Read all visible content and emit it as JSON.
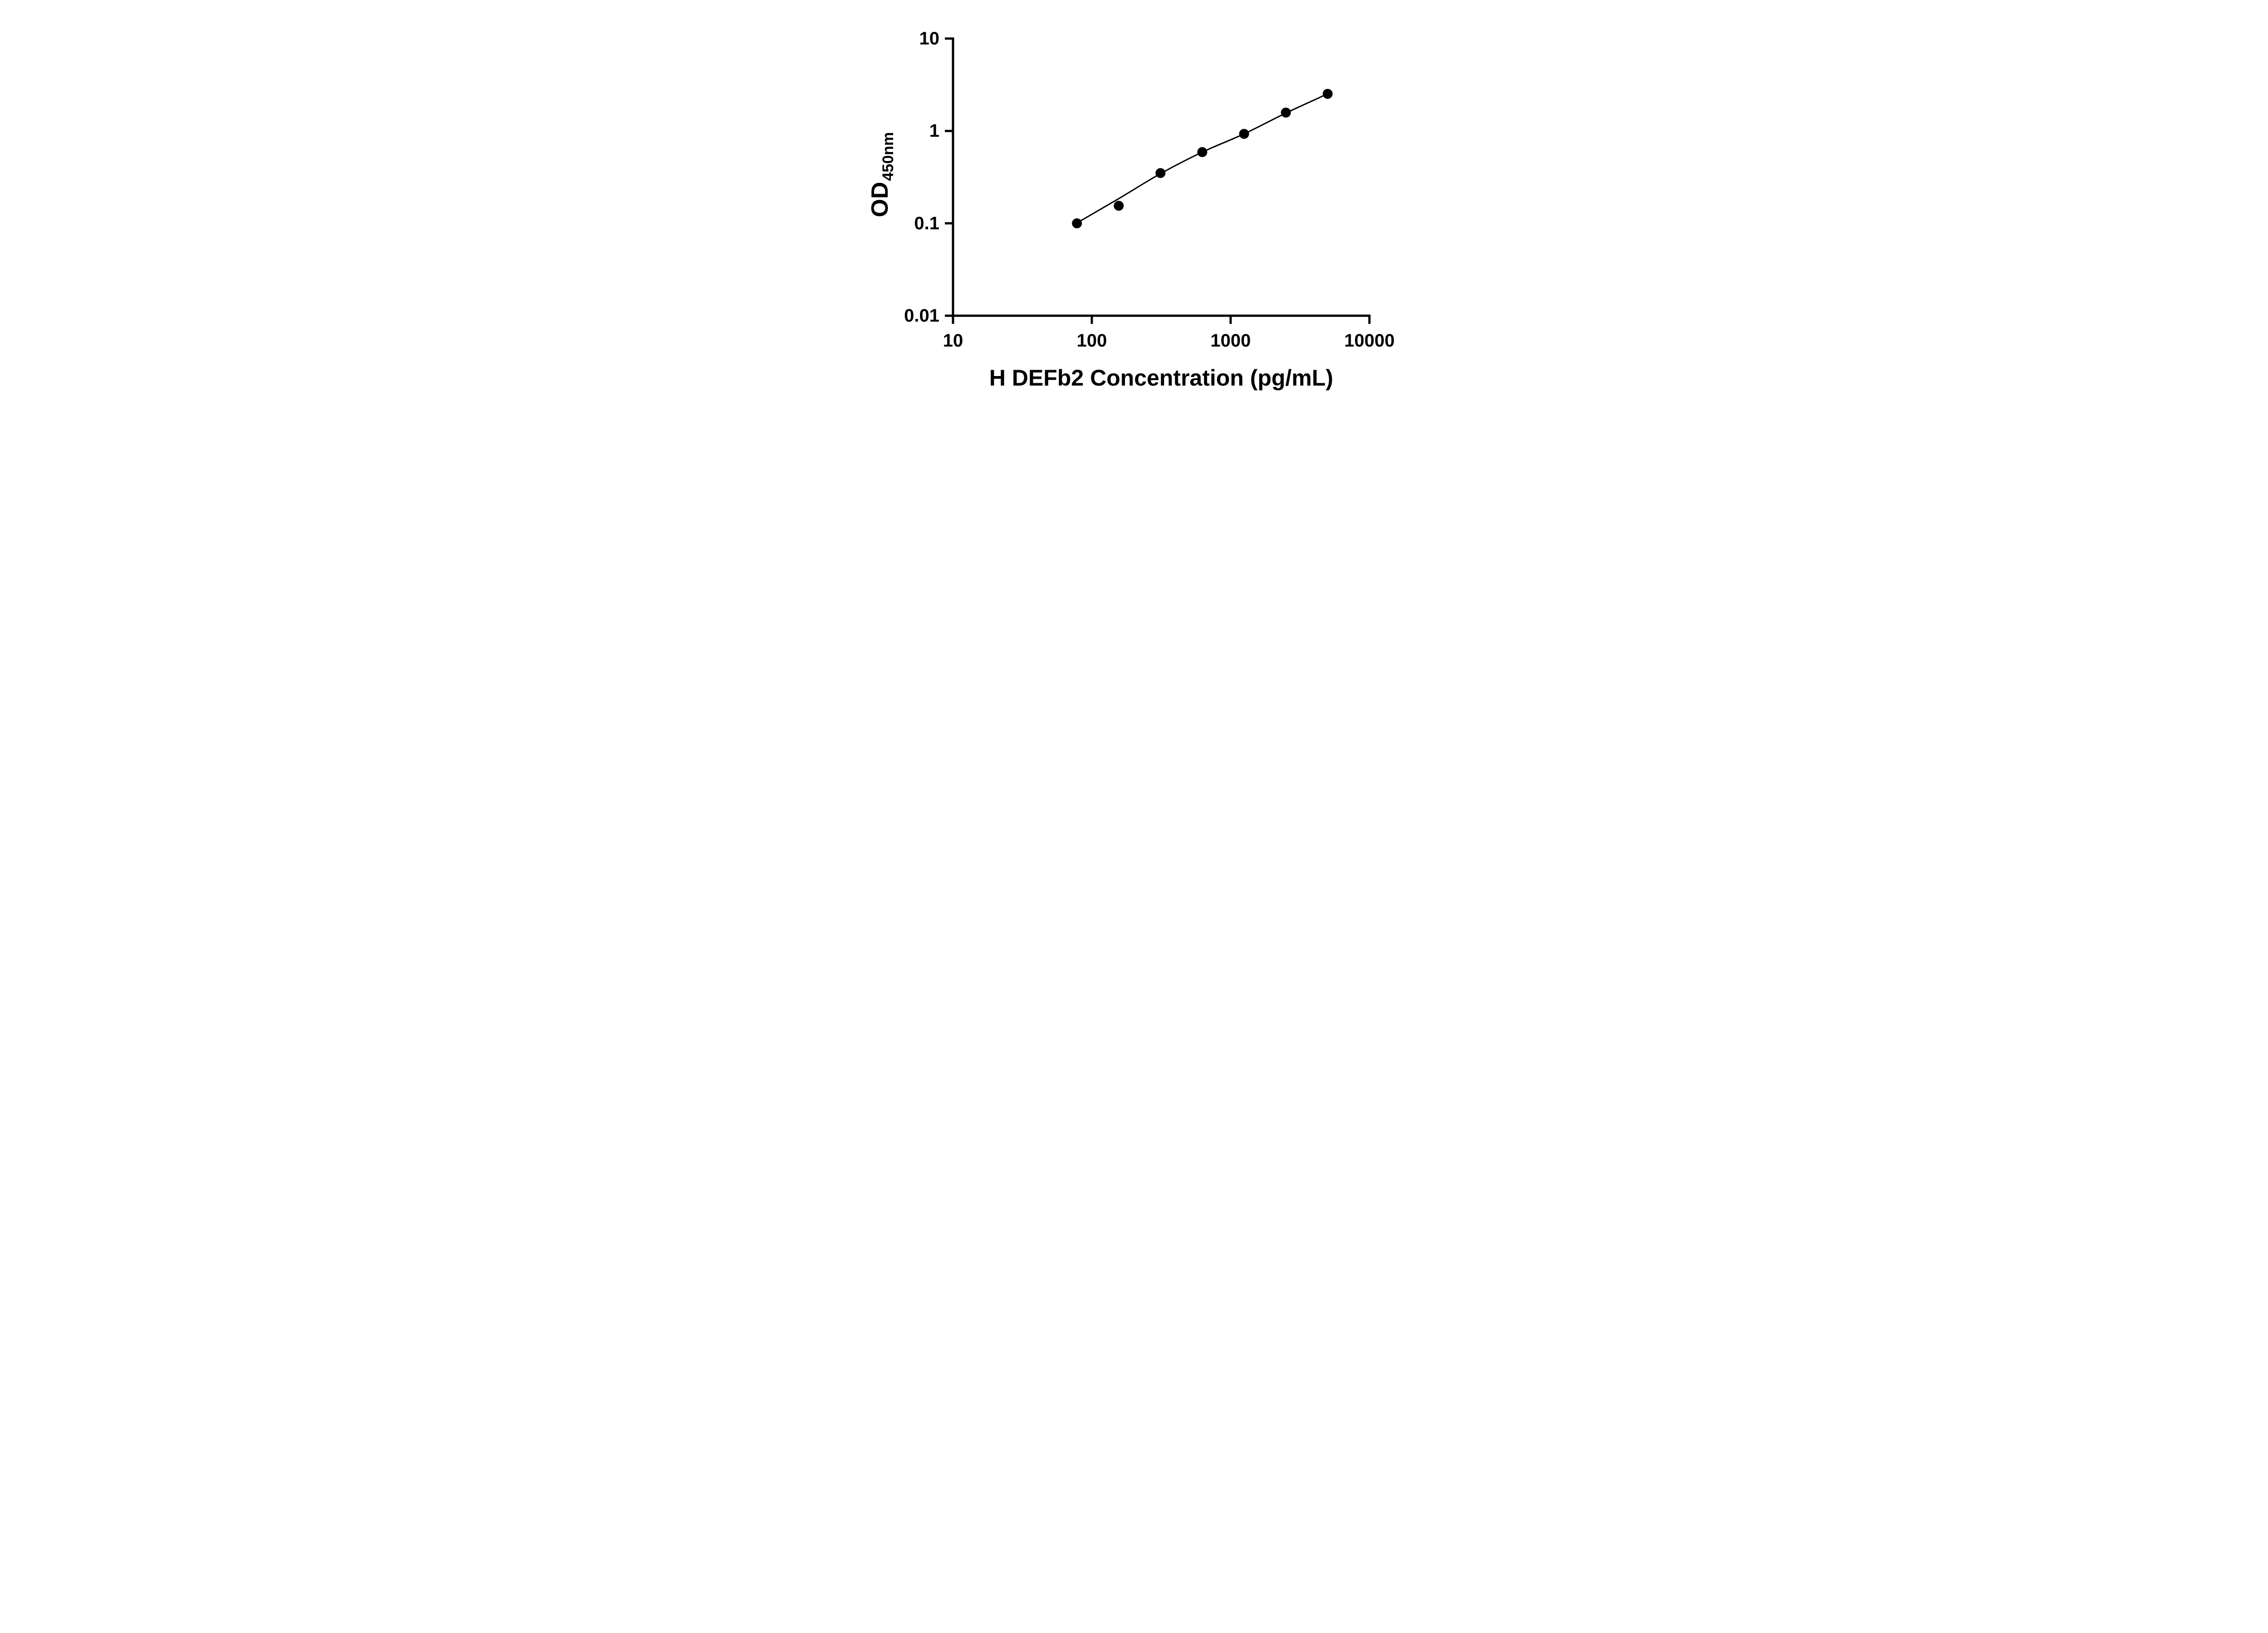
{
  "figure": {
    "background": "#ffffff"
  },
  "chart_data": {
    "type": "scatter",
    "title": "",
    "xlabel": "H DEFb2 Concentration (pg/mL)",
    "ylabel": "OD450nm",
    "ylabel_main": "OD",
    "ylabel_sub": "450nm",
    "x_scale": "log",
    "y_scale": "log",
    "xlim": [
      10,
      10000
    ],
    "ylim": [
      0.01,
      10
    ],
    "grid": false,
    "legend": "none",
    "x_ticks": [
      {
        "value": 10,
        "label": "10"
      },
      {
        "value": 100,
        "label": "100"
      },
      {
        "value": 1000,
        "label": "1000"
      },
      {
        "value": 10000,
        "label": "10000"
      }
    ],
    "y_ticks": [
      {
        "value": 0.01,
        "label": "0.01"
      },
      {
        "value": 0.1,
        "label": "0.1"
      },
      {
        "value": 1,
        "label": "1"
      },
      {
        "value": 10,
        "label": "10"
      }
    ],
    "points": [
      {
        "x": 78.125,
        "y": 0.1
      },
      {
        "x": 156.25,
        "y": 0.155
      },
      {
        "x": 312.5,
        "y": 0.35
      },
      {
        "x": 625,
        "y": 0.59
      },
      {
        "x": 1250,
        "y": 0.93
      },
      {
        "x": 2500,
        "y": 1.58
      },
      {
        "x": 5000,
        "y": 2.52
      }
    ],
    "fit_line": [
      {
        "x": 78.125,
        "y": 0.101
      },
      {
        "x": 156.25,
        "y": 0.185
      },
      {
        "x": 312.5,
        "y": 0.345
      },
      {
        "x": 625,
        "y": 0.59
      },
      {
        "x": 1250,
        "y": 0.93
      },
      {
        "x": 2500,
        "y": 1.56
      },
      {
        "x": 5000,
        "y": 2.52
      }
    ],
    "styles": {
      "point_color": "#000000",
      "line_color": "#000000",
      "axis_color": "#000000",
      "text_color": "#000000",
      "background": "#ffffff",
      "point_radius": 11
    }
  }
}
